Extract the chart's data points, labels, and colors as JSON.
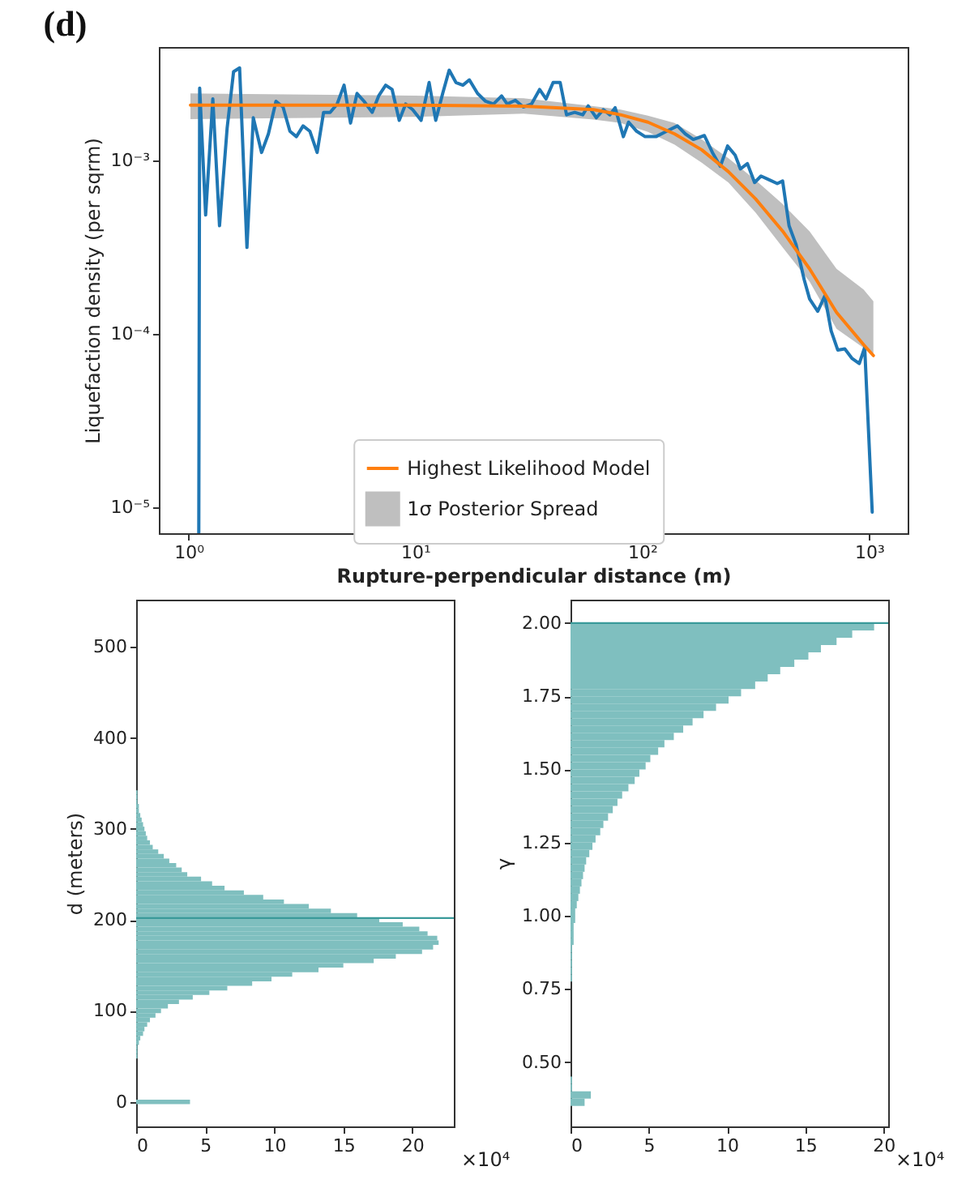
{
  "chart_data": [
    {
      "type": "line",
      "title": "(d)",
      "xlabel": "Rupture-perpendicular distance (m)",
      "ylabel": "Liquefaction density (per sqrm)",
      "log": "xy",
      "legend": "bottom",
      "xlim": [
        0.74,
        1480
      ],
      "ylim": [
        7.1e-06,
        0.0045
      ],
      "xticks": [
        {
          "value": 1,
          "label": "10⁰"
        },
        {
          "value": 10,
          "label": "10¹"
        },
        {
          "value": 100,
          "label": "10²"
        },
        {
          "value": 1000,
          "label": "10³"
        }
      ],
      "yticks": [
        {
          "value": 1e-05,
          "label": "10⁻⁵"
        },
        {
          "value": 0.0001,
          "label": "10⁻⁴"
        },
        {
          "value": 0.001,
          "label": "10⁻³"
        }
      ],
      "series": [
        {
          "color": "#1f77b4",
          "x": [
            1.11,
            1.12,
            1.19,
            1.28,
            1.37,
            1.48,
            1.58,
            1.68,
            1.81,
            1.93,
            2.1,
            2.25,
            2.43,
            2.61,
            2.8,
            2.99,
            3.2,
            3.43,
            3.69,
            3.94,
            4.21,
            4.52,
            4.85,
            5.18,
            5.53,
            5.94,
            6.45,
            6.89,
            7.4,
            7.9,
            8.49,
            9.06,
            9.73,
            10.6,
            11.5,
            12.3,
            13.2,
            14.1,
            15.1,
            16.2,
            17.3,
            18.8,
            20.4,
            22.1,
            24.0,
            25.4,
            27.6,
            29.9,
            32.5,
            35.3,
            37.7,
            40.5,
            43.5,
            46.4,
            50.4,
            54.7,
            57.8,
            62.8,
            67.4,
            72.0,
            76.0,
            82.6,
            87.1,
            94.6,
            103,
            115,
            128,
            143,
            155,
            168,
            188,
            204,
            221,
            238,
            257,
            271,
            291,
            313,
            334,
            363,
            394,
            416,
            444,
            477,
            518,
            547,
            594,
            638,
            681,
            728,
            782,
            840,
            906,
            957,
            1033
          ],
          "values": [
            7.1e-06,
            0.00261,
            0.000484,
            0.00226,
            0.00042,
            0.00153,
            0.00324,
            0.00341,
            0.000315,
            0.00176,
            0.00111,
            0.00142,
            0.00219,
            0.00203,
            0.00147,
            0.00137,
            0.00158,
            0.00147,
            0.00111,
            0.00189,
            0.00189,
            0.00211,
            0.00271,
            0.00164,
            0.00243,
            0.00219,
            0.00189,
            0.00235,
            0.00271,
            0.00256,
            0.0017,
            0.00211,
            0.00196,
            0.0017,
            0.00281,
            0.0017,
            0.00243,
            0.00331,
            0.00281,
            0.00271,
            0.00291,
            0.00243,
            0.00219,
            0.00211,
            0.00235,
            0.00211,
            0.00222,
            0.00203,
            0.00211,
            0.00256,
            0.00226,
            0.00281,
            0.00281,
            0.00183,
            0.00189,
            0.00183,
            0.00206,
            0.00176,
            0.00196,
            0.00183,
            0.00201,
            0.00137,
            0.00166,
            0.00147,
            0.00137,
            0.00137,
            0.00147,
            0.00158,
            0.00142,
            0.00132,
            0.00139,
            0.00111,
            0.000924,
            0.00121,
            0.00107,
            0.000892,
            0.000958,
            0.000745,
            0.000812,
            0.000773,
            0.000735,
            0.00076,
            0.00042,
            0.000327,
            0.000205,
            0.000159,
            0.000135,
            0.000165,
            0.000104,
            8.07e-05,
            8.2e-05,
            7.24e-05,
            6.74e-05,
            8.36e-05,
            9.4e-06
          ]
        },
        {
          "name": "Highest Likelihood Model",
          "color": "#ff7f0e",
          "x": [
            1.02,
            10,
            30,
            61,
            80.4,
            106,
            139,
            183,
            240,
            316,
            416,
            547,
            719,
            946,
            1045
          ],
          "values": [
            0.00208,
            0.00208,
            0.00205,
            0.00196,
            0.00183,
            0.00166,
            0.00142,
            0.00115,
            0.00086,
            0.0006,
            0.000391,
            0.000237,
            0.000133,
            8.67e-05,
            7.5e-05
          ],
          "lower": [
            0.00173,
            0.00178,
            0.00186,
            0.00172,
            0.00164,
            0.00146,
            0.00123,
            0.00097,
            0.000745,
            0.0005,
            0.000315,
            0.0002,
            0.000107,
            8.3e-05,
            7.5e-05
          ],
          "upper": [
            0.00243,
            0.00236,
            0.00228,
            0.00205,
            0.00196,
            0.00181,
            0.00164,
            0.00132,
            0.00103,
            0.00077,
            0.00056,
            0.00039,
            0.000237,
            0.00018,
            0.000154
          ]
        },
        {
          "name": "1σ Posterior Spread",
          "type": "area",
          "color": "#bfbfbf"
        }
      ]
    },
    {
      "type": "histogram",
      "orientation": "horizontal",
      "xlabel": "×10⁴",
      "ylabel": "d (meters)",
      "color": "#7fbfbf",
      "xlim": [
        0,
        23
      ],
      "xticks": [
        0,
        5,
        10,
        15,
        20
      ],
      "ylim": [
        -27,
        552
      ],
      "yticks": [
        0,
        100,
        200,
        300,
        400,
        500
      ],
      "bins": [
        -2.5,
        2.5,
        7.5,
        12.5,
        17.5,
        22.5,
        27.5,
        32.5,
        37.5,
        42.5,
        47.5,
        52.5,
        57.5,
        62.5,
        67.5,
        72.5,
        77.5,
        82.5,
        87.5,
        92.5,
        97.5,
        102.5,
        107.5,
        112.5,
        117.5,
        122.5,
        127.5,
        132.5,
        137.5,
        142.5,
        147.5,
        152.5,
        157.5,
        162.5,
        167.5,
        172.5,
        177.5,
        182.5,
        187.5,
        192.5,
        197.5,
        202.5,
        207.5,
        212.5,
        217.5,
        222.5,
        227.5,
        232.5,
        237.5,
        242.5,
        247.5,
        252.5,
        257.5,
        262.5,
        267.5,
        272.5,
        277.5,
        282.5,
        287.5,
        292.5,
        297.5,
        302.5,
        307.5,
        312.5,
        317.5,
        322.5,
        327.5,
        332.5,
        337.5,
        342.5,
        347.5,
        352.5
      ],
      "values": [
        3.9,
        0,
        0,
        0,
        0,
        0,
        0,
        0,
        0,
        0,
        0.1,
        0.1,
        0.1,
        0.2,
        0.3,
        0.5,
        0.6,
        0.8,
        1.0,
        1.4,
        1.8,
        2.3,
        3.1,
        4.1,
        5.3,
        6.6,
        8.4,
        9.8,
        11.3,
        13.2,
        15.0,
        17.2,
        18.8,
        20.7,
        21.5,
        21.9,
        21.8,
        21.1,
        20.5,
        19.3,
        17.6,
        16.0,
        14.1,
        12.5,
        10.7,
        9.2,
        7.8,
        6.4,
        5.5,
        4.7,
        3.7,
        3.3,
        2.9,
        2.4,
        2.0,
        1.6,
        1.2,
        1.0,
        0.8,
        0.7,
        0.6,
        0.5,
        0.4,
        0.3,
        0.2,
        0.2,
        0.1,
        0.1,
        0.1,
        0,
        0
      ],
      "ref_lines": [
        {
          "axis": "y",
          "value": 202,
          "color": "#3a9a9a"
        }
      ]
    },
    {
      "type": "histogram",
      "orientation": "horizontal",
      "xlabel": "×10⁴",
      "ylabel": "γ",
      "color": "#7fbfbf",
      "xlim": [
        0,
        20.3
      ],
      "xticks": [
        0,
        5,
        10,
        15,
        20
      ],
      "ylim": [
        0.28,
        2.08
      ],
      "yticks": [
        {
          "value": 0.5,
          "label": "0.50"
        },
        {
          "value": 0.75,
          "label": "0.75"
        },
        {
          "value": 1,
          "label": "1.00"
        },
        {
          "value": 1.25,
          "label": "1.25"
        },
        {
          "value": 1.5,
          "label": "1.50"
        },
        {
          "value": 1.75,
          "label": "1.75"
        },
        {
          "value": 2,
          "label": "2.00"
        }
      ],
      "bins": [
        0.35,
        0.375,
        0.4,
        0.425,
        0.45,
        0.475,
        0.5,
        0.525,
        0.55,
        0.575,
        0.6,
        0.625,
        0.65,
        0.675,
        0.7,
        0.725,
        0.75,
        0.775,
        0.8,
        0.825,
        0.85,
        0.875,
        0.9,
        0.925,
        0.95,
        0.975,
        1.0,
        1.025,
        1.05,
        1.075,
        1.1,
        1.125,
        1.15,
        1.175,
        1.2,
        1.225,
        1.25,
        1.275,
        1.3,
        1.325,
        1.35,
        1.375,
        1.4,
        1.425,
        1.45,
        1.475,
        1.5,
        1.525,
        1.55,
        1.575,
        1.6,
        1.625,
        1.65,
        1.675,
        1.7,
        1.725,
        1.75,
        1.775,
        1.8,
        1.825,
        1.85,
        1.875,
        1.9,
        1.925,
        1.95,
        1.975,
        2.0
      ],
      "values": [
        0.9,
        1.3,
        0.1,
        0.1,
        0,
        0,
        0,
        0,
        0,
        0,
        0,
        0,
        0,
        0,
        0,
        0,
        0,
        0.1,
        0.1,
        0.1,
        0.1,
        0.1,
        0.2,
        0.2,
        0.2,
        0.3,
        0.3,
        0.4,
        0.5,
        0.6,
        0.7,
        0.8,
        0.9,
        1.0,
        1.2,
        1.4,
        1.6,
        1.9,
        2.1,
        2.4,
        2.7,
        3.0,
        3.3,
        3.7,
        4.1,
        4.4,
        4.8,
        5.1,
        5.6,
        6.0,
        6.6,
        7.2,
        7.8,
        8.5,
        9.3,
        10.1,
        10.9,
        11.8,
        12.6,
        13.4,
        14.3,
        15.2,
        16.0,
        17.0,
        18.0,
        19.4
      ],
      "ref_lines": [
        {
          "axis": "y",
          "value": 2,
          "color": "#3a9a9a"
        }
      ]
    }
  ]
}
